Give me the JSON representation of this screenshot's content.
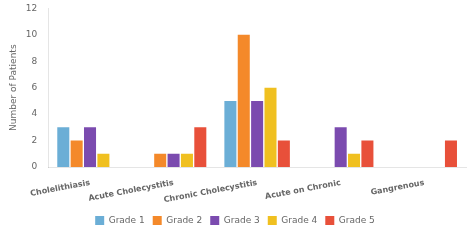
{
  "chart_data": {
    "type": "bar",
    "categories": [
      "Cholelithiasis",
      "Acute Cholecystitis",
      "Chronic Cholecystitis",
      "Acute on Chronic",
      "Gangrenous"
    ],
    "series": [
      {
        "name": "Grade 1",
        "color": "#6BAED6",
        "values": [
          3,
          0,
          5,
          0,
          0
        ]
      },
      {
        "name": "Grade 2",
        "color": "#F4892A",
        "values": [
          2,
          1,
          10,
          0,
          0
        ]
      },
      {
        "name": "Grade 3",
        "color": "#7B4BAF",
        "values": [
          3,
          1,
          5,
          3,
          0
        ]
      },
      {
        "name": "Grade 4",
        "color": "#F0C020",
        "values": [
          1,
          1,
          6,
          1,
          0
        ]
      },
      {
        "name": "Grade 5",
        "color": "#E8503A",
        "values": [
          0,
          3,
          2,
          2,
          2
        ]
      }
    ],
    "ylabel": "Number of Patients",
    "ylim": [
      0,
      12
    ],
    "yticks": [
      0,
      2,
      4,
      6,
      8,
      10,
      12
    ],
    "grid": false,
    "legend": "bottom"
  }
}
